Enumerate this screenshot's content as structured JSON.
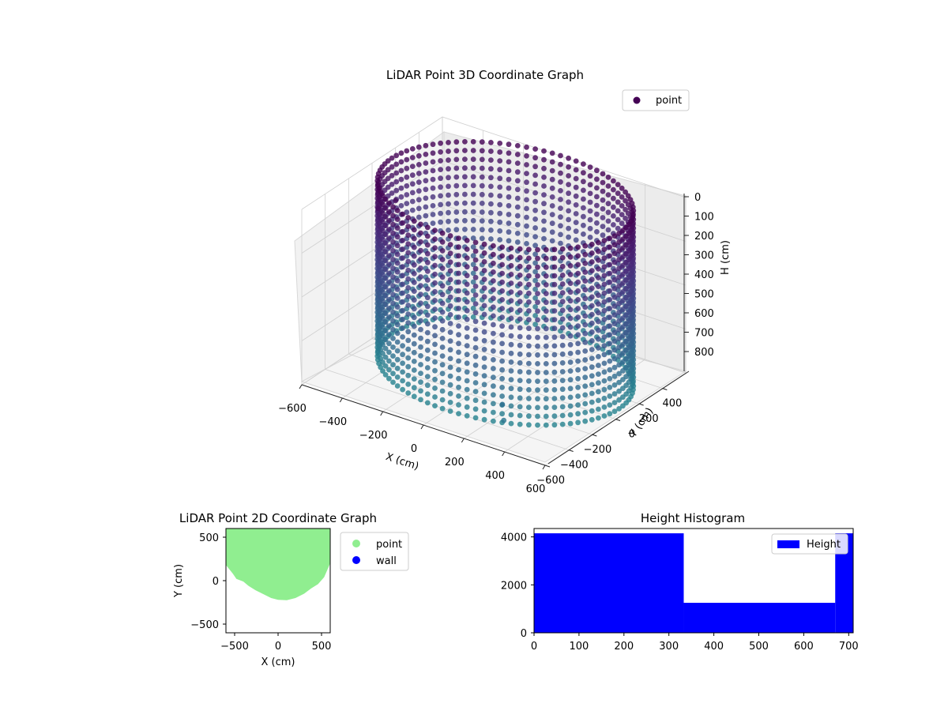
{
  "colors": {
    "viridis_dark": "#440154",
    "viridis_mid": "#3b528b",
    "point_2d": "#90ee90",
    "wall": "#0000ff",
    "hist_bar": "#0000ff"
  },
  "chart_data": [
    {
      "type": "scatter3d",
      "title": "LiDAR Point 3D Coordinate Graph",
      "xlabel": "X (cm)",
      "ylabel": "Y (cm)",
      "zlabel": "H (cm)",
      "xlim": [
        -600,
        600
      ],
      "ylim": [
        -600,
        600
      ],
      "zlim": [
        0,
        800
      ],
      "z_inverted": true,
      "x_ticks": [
        "−600",
        "−400",
        "−200",
        "0",
        "200",
        "400",
        "600"
      ],
      "y_ticks": [
        "−600",
        "−400",
        "−200",
        "0",
        "200",
        "400"
      ],
      "z_ticks": [
        "0",
        "100",
        "200",
        "300",
        "400",
        "500",
        "600",
        "700",
        "800"
      ],
      "legend": [
        "point"
      ],
      "legend_position": "upper-right",
      "colormap": "viridis",
      "grid": true,
      "series": [
        {
          "name": "point",
          "shape": "ring",
          "center": [
            0,
            100
          ],
          "radius": 560,
          "height_range": [
            0,
            800
          ],
          "points": [
            [
              -380,
              -180,
              40
            ],
            [
              -420,
              -260,
              60
            ],
            [
              320,
              -480,
              650
            ],
            [
              350,
              -520,
              700
            ]
          ]
        }
      ]
    },
    {
      "type": "scatter",
      "title": "LiDAR Point 2D Coordinate Graph",
      "xlabel": "X (cm)",
      "ylabel": "Y (cm)",
      "xlim": [
        -600,
        600
      ],
      "ylim": [
        -600,
        600
      ],
      "x_ticks": [
        "−500",
        "0",
        "500"
      ],
      "y_ticks": [
        "500",
        "0",
        "−500"
      ],
      "legend": [
        "point",
        "wall"
      ],
      "legend_position": "outside-right",
      "series": [
        {
          "name": "point",
          "outline": [
            [
              -600,
              600
            ],
            [
              -600,
              180
            ],
            [
              -520,
              80
            ],
            [
              -480,
              20
            ],
            [
              -400,
              -10
            ],
            [
              -340,
              -60
            ],
            [
              -260,
              -110
            ],
            [
              -180,
              -150
            ],
            [
              -80,
              -200
            ],
            [
              0,
              -220
            ],
            [
              100,
              -225
            ],
            [
              200,
              -200
            ],
            [
              300,
              -150
            ],
            [
              380,
              -90
            ],
            [
              460,
              -40
            ],
            [
              530,
              40
            ],
            [
              600,
              200
            ],
            [
              600,
              600
            ]
          ]
        },
        {
          "name": "wall",
          "points": []
        }
      ]
    },
    {
      "type": "histogram",
      "title": "Height Histogram",
      "xlabel": "",
      "ylabel": "",
      "xlim": [
        0,
        710
      ],
      "ylim": [
        0,
        4350
      ],
      "x_ticks": [
        "0",
        "100",
        "200",
        "300",
        "400",
        "500",
        "600",
        "700"
      ],
      "y_ticks": [
        "0",
        "2000",
        "4000"
      ],
      "legend": [
        "Height"
      ],
      "legend_position": "upper-right",
      "bins": [
        {
          "start": 0,
          "end": 333,
          "count": 4150
        },
        {
          "start": 333,
          "end": 670,
          "count": 1250
        },
        {
          "start": 670,
          "end": 710,
          "count": 4150
        }
      ]
    }
  ]
}
